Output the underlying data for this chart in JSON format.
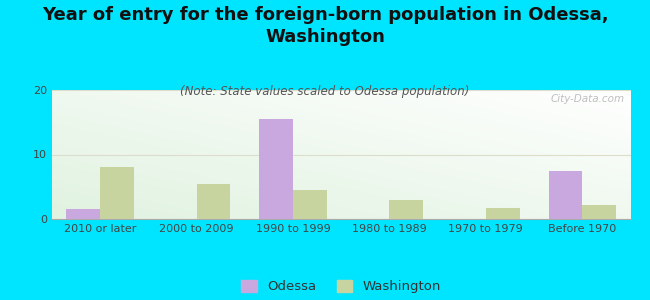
{
  "title": "Year of entry for the foreign-born population in Odessa,\nWashington",
  "subtitle": "(Note: State values scaled to Odessa population)",
  "categories": [
    "2010 or later",
    "2000 to 2009",
    "1990 to 1999",
    "1980 to 1989",
    "1970 to 1979",
    "Before 1970"
  ],
  "odessa_values": [
    1.5,
    0,
    15.5,
    0,
    0,
    7.5
  ],
  "washington_values": [
    8.0,
    5.5,
    4.5,
    3.0,
    1.7,
    2.2
  ],
  "odessa_color": "#c9a8e0",
  "washington_color": "#c8d4a0",
  "background_color": "#00e5ff",
  "ylim": [
    0,
    20
  ],
  "yticks": [
    0,
    10,
    20
  ],
  "bar_width": 0.35,
  "title_fontsize": 13,
  "subtitle_fontsize": 8.5,
  "tick_fontsize": 8,
  "legend_fontsize": 9.5,
  "watermark": "City-Data.com"
}
